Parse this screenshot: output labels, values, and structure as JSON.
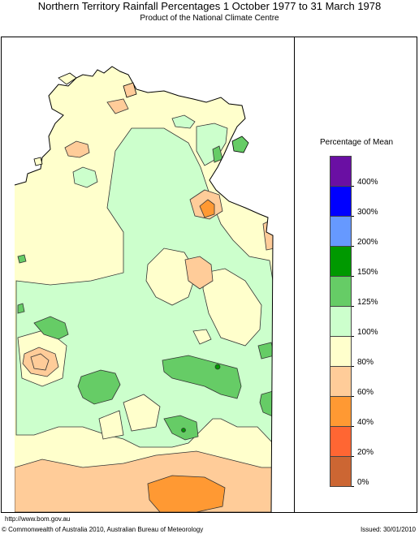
{
  "title": "Northern Territory Rainfall Percentages 1 October 1977 to 31 March 1978",
  "subtitle": "Product of the National Climate Centre",
  "legend": {
    "title": "Percentage of Mean",
    "bins": [
      {
        "label": "400%",
        "color": "#6a0fa3"
      },
      {
        "label": "300%",
        "color": "#0000ff"
      },
      {
        "label": "200%",
        "color": "#6699ff"
      },
      {
        "label": "150%",
        "color": "#009900"
      },
      {
        "label": "125%",
        "color": "#66cc66"
      },
      {
        "label": "100%",
        "color": "#ccffcc"
      },
      {
        "label": "80%",
        "color": "#ffffcc"
      },
      {
        "label": "60%",
        "color": "#ffcc99"
      },
      {
        "label": "40%",
        "color": "#ff9933"
      },
      {
        "label": "20%",
        "color": "#ff6633"
      },
      {
        "label": "0%",
        "color": "#cc6633"
      }
    ]
  },
  "footer": {
    "url": "http://www.bom.gov.au",
    "copyright": "© Commonwealth of Australia 2010, Australian Bureau of Meteorology",
    "issued": "Issued: 30/01/2010"
  }
}
